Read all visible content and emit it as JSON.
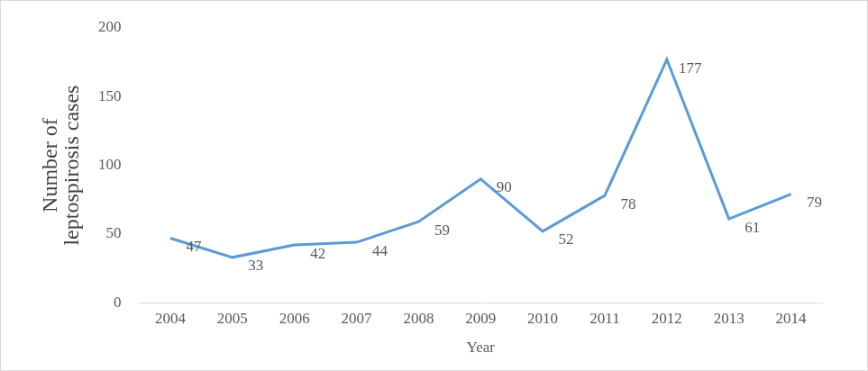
{
  "chart_data": {
    "type": "line",
    "categories": [
      "2004",
      "2005",
      "2006",
      "2007",
      "2008",
      "2009",
      "2010",
      "2011",
      "2012",
      "2013",
      "2014"
    ],
    "values": [
      47,
      33,
      42,
      44,
      59,
      90,
      52,
      78,
      177,
      61,
      79
    ],
    "color": "#5b9bd5",
    "x_label": "Year",
    "y_label": [
      "Number of",
      "leptospirosis cases"
    ],
    "ylim": [
      0,
      200
    ],
    "yticks": [
      0,
      50,
      100,
      150,
      200
    ],
    "grid": false,
    "data_labels": true,
    "marker": "none"
  }
}
